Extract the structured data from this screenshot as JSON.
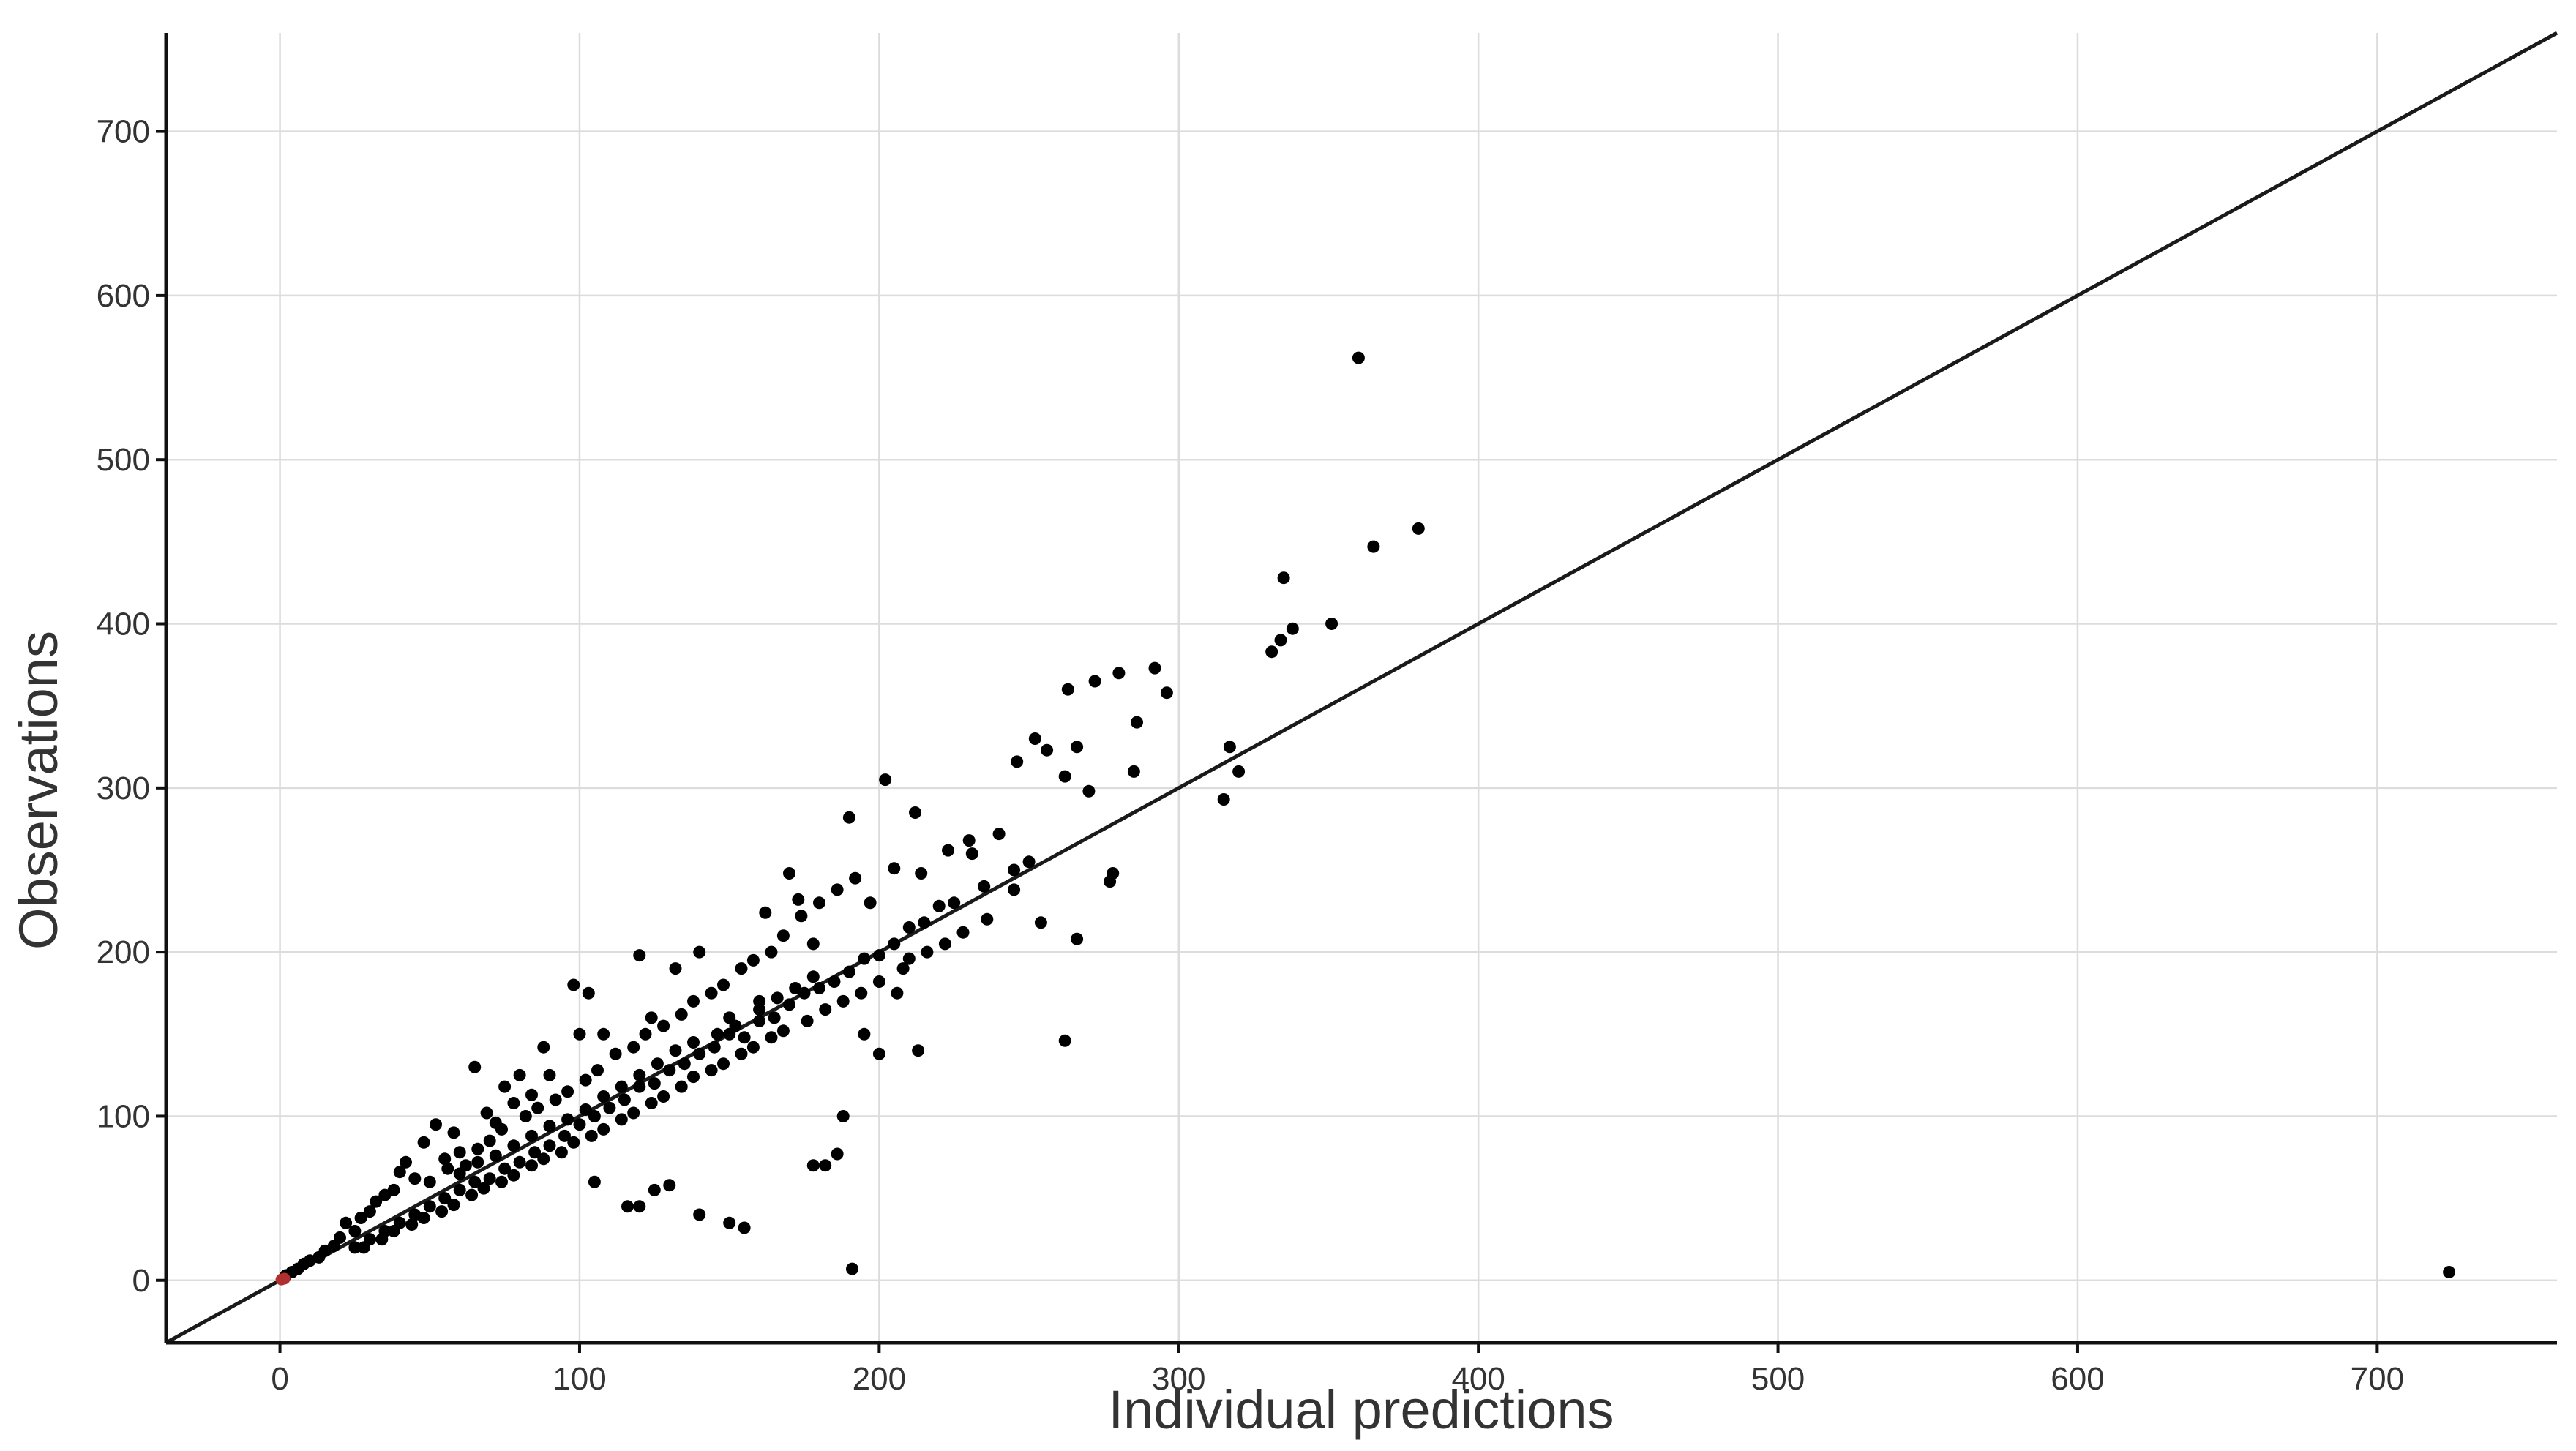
{
  "chart_data": {
    "type": "scatter",
    "title": "",
    "xlabel": "Individual predictions",
    "ylabel": "Observations",
    "xlim": [
      -38,
      760
    ],
    "ylim": [
      -38,
      760
    ],
    "x_ticks": [
      0,
      100,
      200,
      300,
      400,
      500,
      600,
      700
    ],
    "y_ticks": [
      0,
      100,
      200,
      300,
      400,
      500,
      600,
      700
    ],
    "grid": true,
    "legend": "none",
    "reference_line": {
      "type": "identity",
      "x": [
        -38,
        760
      ],
      "y": [
        -38,
        760
      ],
      "color": "#1a1a1a"
    },
    "point_color": "#000000",
    "highlight_point_color": "#b03030",
    "series": [
      {
        "highlight_points": [
          [
            0.5,
            0.5
          ],
          [
            1.5,
            1.0
          ]
        ],
        "points": [
          [
            360,
            562
          ],
          [
            365,
            447
          ],
          [
            380,
            458
          ],
          [
            335,
            428
          ],
          [
            331,
            383
          ],
          [
            334,
            390
          ],
          [
            338,
            397
          ],
          [
            351,
            400
          ],
          [
            292,
            373
          ],
          [
            296,
            358
          ],
          [
            280,
            370
          ],
          [
            272,
            365
          ],
          [
            263,
            360
          ],
          [
            286,
            340
          ],
          [
            317,
            325
          ],
          [
            320,
            310
          ],
          [
            315,
            293
          ],
          [
            252,
            330
          ],
          [
            256,
            323
          ],
          [
            262,
            307
          ],
          [
            266,
            325
          ],
          [
            246,
            316
          ],
          [
            270,
            298
          ],
          [
            285,
            310
          ],
          [
            278,
            248
          ],
          [
            277,
            243
          ],
          [
            262,
            146
          ],
          [
            266,
            208
          ],
          [
            254,
            218
          ],
          [
            191,
            7
          ],
          [
            724,
            5
          ],
          [
            182,
            70
          ],
          [
            178,
            70
          ],
          [
            150,
            35
          ],
          [
            155,
            32
          ],
          [
            140,
            40
          ],
          [
            130,
            58
          ],
          [
            125,
            55
          ],
          [
            120,
            45
          ],
          [
            116,
            45
          ],
          [
            105,
            60
          ],
          [
            190,
            282
          ],
          [
            202,
            305
          ],
          [
            212,
            285
          ],
          [
            197,
            230
          ],
          [
            223,
            262
          ],
          [
            230,
            268
          ],
          [
            240,
            272
          ],
          [
            245,
            238
          ],
          [
            231,
            260
          ],
          [
            214,
            248
          ],
          [
            205,
            251
          ],
          [
            210,
            196
          ],
          [
            206,
            175
          ],
          [
            213,
            140
          ],
          [
            200,
            138
          ],
          [
            195,
            150
          ],
          [
            188,
            100
          ],
          [
            186,
            77
          ],
          [
            173,
            232
          ],
          [
            170,
            248
          ],
          [
            162,
            224
          ],
          [
            178,
            205
          ],
          [
            160,
            170
          ],
          [
            150,
            160
          ],
          [
            140,
            200
          ],
          [
            132,
            190
          ],
          [
            124,
            160
          ],
          [
            120,
            198
          ],
          [
            108,
            150
          ],
          [
            103,
            175
          ],
          [
            100,
            150
          ],
          [
            98,
            180
          ],
          [
            88,
            142
          ],
          [
            90,
            125
          ],
          [
            84,
            113
          ],
          [
            80,
            125
          ],
          [
            78,
            108
          ],
          [
            75,
            118
          ],
          [
            72,
            96
          ],
          [
            69,
            102
          ],
          [
            65,
            130
          ],
          [
            60,
            78
          ],
          [
            58,
            90
          ],
          [
            55,
            74
          ],
          [
            52,
            95
          ],
          [
            48,
            84
          ],
          [
            45,
            62
          ],
          [
            42,
            72
          ],
          [
            40,
            66
          ],
          [
            38,
            55
          ],
          [
            35,
            52
          ],
          [
            30,
            42
          ],
          [
            27,
            38
          ],
          [
            25,
            30
          ],
          [
            22,
            35
          ],
          [
            20,
            26
          ],
          [
            18,
            21
          ],
          [
            15,
            18
          ],
          [
            13,
            14
          ],
          [
            10,
            12
          ],
          [
            8,
            10
          ],
          [
            6,
            7
          ],
          [
            4,
            5
          ],
          [
            2,
            3
          ],
          [
            25,
            20
          ],
          [
            30,
            25
          ],
          [
            35,
            30
          ],
          [
            40,
            35
          ],
          [
            45,
            40
          ],
          [
            50,
            45
          ],
          [
            55,
            50
          ],
          [
            60,
            55
          ],
          [
            65,
            60
          ],
          [
            70,
            62
          ],
          [
            75,
            68
          ],
          [
            80,
            72
          ],
          [
            85,
            78
          ],
          [
            90,
            82
          ],
          [
            95,
            88
          ],
          [
            100,
            95
          ],
          [
            105,
            100
          ],
          [
            110,
            105
          ],
          [
            115,
            110
          ],
          [
            120,
            118
          ],
          [
            125,
            120
          ],
          [
            130,
            128
          ],
          [
            135,
            132
          ],
          [
            140,
            138
          ],
          [
            145,
            142
          ],
          [
            150,
            150
          ],
          [
            155,
            148
          ],
          [
            160,
            158
          ],
          [
            165,
            160
          ],
          [
            170,
            168
          ],
          [
            175,
            175
          ],
          [
            180,
            178
          ],
          [
            185,
            182
          ],
          [
            190,
            188
          ],
          [
            195,
            196
          ],
          [
            200,
            198
          ],
          [
            205,
            205
          ],
          [
            210,
            215
          ],
          [
            215,
            218
          ],
          [
            220,
            228
          ],
          [
            225,
            230
          ],
          [
            235,
            240
          ],
          [
            245,
            250
          ],
          [
            250,
            255
          ],
          [
            32,
            48
          ],
          [
            50,
            60
          ],
          [
            56,
            68
          ],
          [
            62,
            70
          ],
          [
            66,
            80
          ],
          [
            70,
            85
          ],
          [
            74,
            92
          ],
          [
            82,
            100
          ],
          [
            86,
            105
          ],
          [
            92,
            110
          ],
          [
            96,
            115
          ],
          [
            102,
            122
          ],
          [
            106,
            128
          ],
          [
            112,
            138
          ],
          [
            118,
            142
          ],
          [
            122,
            150
          ],
          [
            128,
            155
          ],
          [
            134,
            162
          ],
          [
            138,
            170
          ],
          [
            144,
            175
          ],
          [
            148,
            180
          ],
          [
            154,
            190
          ],
          [
            158,
            195
          ],
          [
            164,
            200
          ],
          [
            168,
            210
          ],
          [
            174,
            222
          ],
          [
            180,
            230
          ],
          [
            186,
            238
          ],
          [
            192,
            245
          ],
          [
            28,
            20
          ],
          [
            34,
            25
          ],
          [
            38,
            30
          ],
          [
            44,
            34
          ],
          [
            48,
            38
          ],
          [
            54,
            42
          ],
          [
            58,
            46
          ],
          [
            64,
            52
          ],
          [
            68,
            56
          ],
          [
            74,
            60
          ],
          [
            78,
            64
          ],
          [
            84,
            70
          ],
          [
            88,
            74
          ],
          [
            94,
            78
          ],
          [
            98,
            84
          ],
          [
            104,
            88
          ],
          [
            108,
            92
          ],
          [
            114,
            98
          ],
          [
            118,
            102
          ],
          [
            124,
            108
          ],
          [
            128,
            112
          ],
          [
            134,
            118
          ],
          [
            138,
            124
          ],
          [
            144,
            128
          ],
          [
            148,
            132
          ],
          [
            154,
            138
          ],
          [
            158,
            142
          ],
          [
            164,
            148
          ],
          [
            168,
            152
          ],
          [
            176,
            158
          ],
          [
            182,
            165
          ],
          [
            188,
            170
          ],
          [
            194,
            175
          ],
          [
            200,
            182
          ],
          [
            208,
            190
          ],
          [
            216,
            200
          ],
          [
            222,
            205
          ],
          [
            228,
            212
          ],
          [
            236,
            220
          ],
          [
            60,
            65
          ],
          [
            66,
            72
          ],
          [
            72,
            76
          ],
          [
            78,
            82
          ],
          [
            84,
            88
          ],
          [
            90,
            94
          ],
          [
            96,
            98
          ],
          [
            102,
            104
          ],
          [
            108,
            112
          ],
          [
            114,
            118
          ],
          [
            120,
            125
          ],
          [
            126,
            132
          ],
          [
            132,
            140
          ],
          [
            138,
            145
          ],
          [
            146,
            150
          ],
          [
            152,
            155
          ],
          [
            160,
            165
          ],
          [
            166,
            172
          ],
          [
            172,
            178
          ],
          [
            178,
            185
          ]
        ]
      }
    ]
  }
}
